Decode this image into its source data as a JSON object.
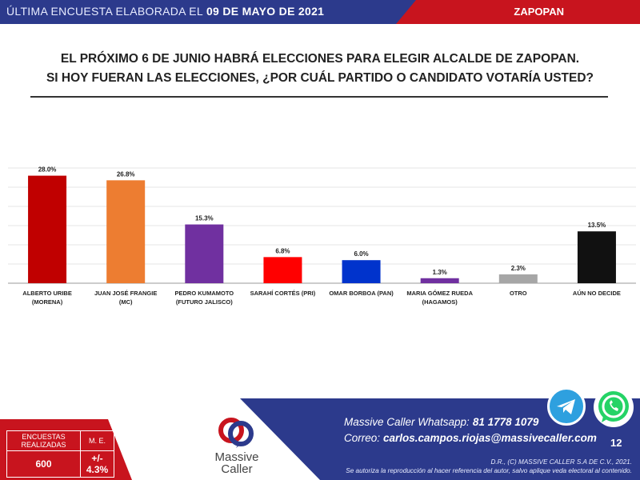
{
  "header": {
    "left_prefix": "ÚLTIMA ENCUESTA ELABORADA EL",
    "left_date": "09 DE MAYO DE 2021",
    "right_label": "ZAPOPAN"
  },
  "question": {
    "line1": "EL PRÓXIMO 6 DE JUNIO HABRÁ ELECCIONES PARA ELEGIR ALCALDE DE ZAPOPAN.",
    "line2": "SI HOY FUERAN LAS ELECCIONES, ¿POR CUÁL PARTIDO O CANDIDATO VOTARÍA USTED?"
  },
  "chart_data": {
    "type": "bar",
    "categories": [
      [
        "ALBERTO URIBE",
        "(MORENA)"
      ],
      [
        "JUAN JOSÉ  FRANGIE",
        "(MC)"
      ],
      [
        "PEDRO KUMAMOTO",
        "(FUTURO JALISCO)"
      ],
      [
        "SARAHÍ CORTÉS (PRI)"
      ],
      [
        "OMAR BORBOA (PAN)"
      ],
      [
        "MARIA GÓMEZ RUEDA",
        "(HAGAMOS)"
      ],
      [
        "OTRO"
      ],
      [
        "AÚN NO DECIDE"
      ]
    ],
    "values": [
      28.0,
      26.8,
      15.3,
      6.8,
      6.0,
      1.3,
      2.3,
      13.5
    ],
    "value_labels": [
      "28.0%",
      "26.8%",
      "15.3%",
      "6.8%",
      "6.0%",
      "1.3%",
      "2.3%",
      "13.5%"
    ],
    "colors": [
      "#c00000",
      "#ed7d31",
      "#7030a0",
      "#ff0000",
      "#0033cc",
      "#7030a0",
      "#a6a6a6",
      "#111111"
    ],
    "ylim": [
      0,
      30
    ],
    "grid": true
  },
  "stats": {
    "col1_header": "ENCUESTAS REALIZADAS",
    "col2_header": "M. E.",
    "col1_value": "600",
    "col2_value": "+/- 4.3%"
  },
  "logo": {
    "name_line1": "Massive",
    "name_line2": "Caller"
  },
  "contact": {
    "whatsapp_label": "Massive Caller Whatsapp:",
    "whatsapp_number": "81 1778 1079",
    "email_label": "Correo:",
    "email": "carlos.campos.riojas@massivecaller.com"
  },
  "page_number": "12",
  "legal": {
    "line1": "D.R., (C) MASSIVE CALLER S.A DE C.V., 2021.",
    "line2": "Se autoriza la reproducción al hacer referencia del autor, salvo aplique veda electoral al contenido."
  },
  "icons": {
    "telegram": "telegram-icon",
    "whatsapp": "whatsapp-icon"
  }
}
